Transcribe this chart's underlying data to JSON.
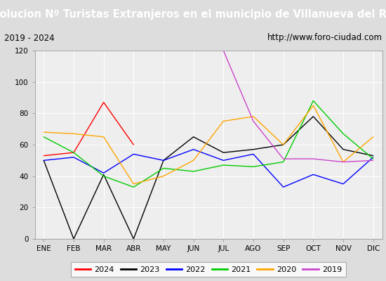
{
  "title": "Evolucion Nº Turistas Extranjeros en el municipio de Villanueva del Rey",
  "subtitle_left": "2019 - 2024",
  "subtitle_right": "http://www.foro-ciudad.com",
  "months": [
    "ENE",
    "FEB",
    "MAR",
    "ABR",
    "MAY",
    "JUN",
    "JUL",
    "AGO",
    "SEP",
    "OCT",
    "NOV",
    "DIC"
  ],
  "series": {
    "2024": {
      "color": "#ff0000",
      "data": [
        53,
        55,
        87,
        60,
        null,
        null,
        null,
        null,
        null,
        null,
        null,
        null
      ]
    },
    "2023": {
      "color": "#000000",
      "data": [
        50,
        0,
        41,
        0,
        50,
        65,
        55,
        57,
        60,
        78,
        57,
        53
      ]
    },
    "2022": {
      "color": "#0000ff",
      "data": [
        50,
        52,
        42,
        54,
        50,
        57,
        50,
        54,
        33,
        41,
        35,
        52
      ]
    },
    "2021": {
      "color": "#00cc00",
      "data": [
        65,
        55,
        40,
        33,
        45,
        43,
        47,
        46,
        49,
        88,
        67,
        51
      ]
    },
    "2020": {
      "color": "#ffa500",
      "data": [
        68,
        67,
        65,
        35,
        40,
        50,
        75,
        78,
        60,
        85,
        49,
        65
      ]
    },
    "2019": {
      "color": "#cc44cc",
      "data": [
        null,
        null,
        null,
        null,
        null,
        null,
        120,
        75,
        51,
        51,
        49,
        50
      ]
    }
  },
  "ylim": [
    0,
    120
  ],
  "yticks": [
    0,
    20,
    40,
    60,
    80,
    100,
    120
  ],
  "title_bg": "#4472c4",
  "title_color": "#ffffff",
  "subtitle_bg": "#cccccc",
  "plot_bg": "#eeeeee",
  "outer_bg": "#dddddd",
  "grid_color": "#ffffff",
  "title_fontsize": 10.5,
  "subtitle_fontsize": 8.5,
  "tick_fontsize": 7.5,
  "legend_fontsize": 8,
  "legend_order": [
    "2024",
    "2023",
    "2022",
    "2021",
    "2020",
    "2019"
  ]
}
